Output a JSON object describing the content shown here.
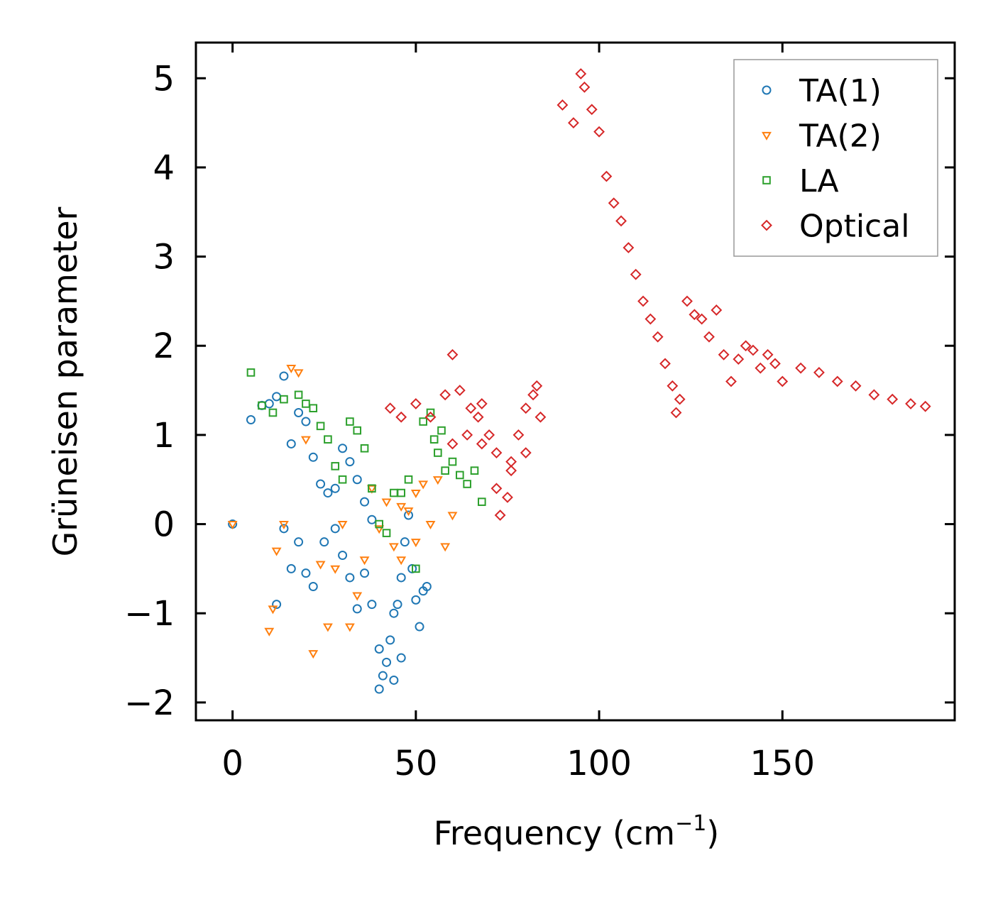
{
  "chart_data": {
    "type": "scatter",
    "title": "",
    "xlabel": "Frequency (cm",
    "xlabel_superscript": "−1",
    "xlabel_suffix": ")",
    "ylabel": "Grüneisen parameter",
    "xlim": [
      -10,
      197
    ],
    "ylim": [
      -2.2,
      5.4
    ],
    "xticks": [
      0,
      50,
      100,
      150
    ],
    "xtick_labels": [
      "0",
      "50",
      "100",
      "150"
    ],
    "yticks": [
      -2,
      -1,
      0,
      1,
      2,
      3,
      4,
      5
    ],
    "ytick_labels": [
      "−2",
      "−1",
      "0",
      "1",
      "2",
      "3",
      "4",
      "5"
    ],
    "grid": false,
    "legend": "top-right",
    "series": [
      {
        "name": "TA(1)",
        "marker": "circle",
        "color": "#1f77b4",
        "anchors": [
          [
            0,
            0
          ],
          [
            5,
            1.17
          ],
          [
            8,
            1.33
          ],
          [
            10,
            1.35
          ],
          [
            12,
            1.43
          ],
          [
            14,
            1.66
          ],
          [
            16,
            0.9
          ],
          [
            18,
            1.25
          ],
          [
            20,
            1.15
          ],
          [
            22,
            0.75
          ],
          [
            24,
            0.45
          ],
          [
            26,
            0.35
          ],
          [
            28,
            0.4
          ],
          [
            30,
            0.85
          ],
          [
            32,
            0.7
          ],
          [
            34,
            0.5
          ],
          [
            36,
            0.25
          ],
          [
            38,
            0.05
          ],
          [
            12,
            -0.9
          ],
          [
            14,
            -0.05
          ],
          [
            16,
            -0.5
          ],
          [
            18,
            -0.2
          ],
          [
            20,
            -0.55
          ],
          [
            22,
            -0.7
          ],
          [
            25,
            -0.2
          ],
          [
            28,
            -0.05
          ],
          [
            30,
            -0.35
          ],
          [
            32,
            -0.6
          ],
          [
            34,
            -0.95
          ],
          [
            36,
            -0.55
          ],
          [
            38,
            -0.9
          ],
          [
            40,
            -1.4
          ],
          [
            41,
            -1.7
          ],
          [
            42,
            -1.55
          ],
          [
            43,
            -1.3
          ],
          [
            44,
            -1.0
          ],
          [
            45,
            -0.9
          ],
          [
            46,
            -0.6
          ],
          [
            47,
            -0.2
          ],
          [
            48,
            0.1
          ],
          [
            49,
            -0.5
          ],
          [
            50,
            -0.85
          ],
          [
            51,
            -1.15
          ],
          [
            52,
            -0.75
          ],
          [
            53,
            -0.7
          ],
          [
            46,
            -1.5
          ],
          [
            44,
            -1.75
          ],
          [
            40,
            -1.85
          ]
        ]
      },
      {
        "name": "TA(2)",
        "marker": "triangle-down",
        "color": "#ff7f0e",
        "anchors": [
          [
            0,
            0
          ],
          [
            10,
            -1.2
          ],
          [
            11,
            -0.95
          ],
          [
            12,
            -0.3
          ],
          [
            14,
            0.0
          ],
          [
            16,
            1.75
          ],
          [
            18,
            1.7
          ],
          [
            20,
            0.95
          ],
          [
            22,
            -1.45
          ],
          [
            24,
            -0.45
          ],
          [
            26,
            -1.15
          ],
          [
            28,
            -0.5
          ],
          [
            30,
            0.0
          ],
          [
            32,
            -1.15
          ],
          [
            34,
            -0.8
          ],
          [
            36,
            -0.4
          ],
          [
            38,
            0.4
          ],
          [
            40,
            -0.05
          ],
          [
            42,
            0.25
          ],
          [
            44,
            -0.25
          ],
          [
            46,
            -0.4
          ],
          [
            48,
            0.15
          ],
          [
            50,
            0.35
          ],
          [
            52,
            0.45
          ],
          [
            54,
            0.0
          ],
          [
            56,
            0.5
          ],
          [
            58,
            -0.25
          ],
          [
            60,
            0.1
          ],
          [
            50,
            -0.2
          ],
          [
            46,
            0.2
          ]
        ]
      },
      {
        "name": "LA",
        "marker": "square",
        "color": "#2ca02c",
        "anchors": [
          [
            5,
            1.7
          ],
          [
            8,
            1.33
          ],
          [
            11,
            1.25
          ],
          [
            14,
            1.4
          ],
          [
            18,
            1.45
          ],
          [
            20,
            1.35
          ],
          [
            22,
            1.3
          ],
          [
            24,
            1.1
          ],
          [
            26,
            0.95
          ],
          [
            28,
            0.65
          ],
          [
            30,
            0.5
          ],
          [
            32,
            1.15
          ],
          [
            34,
            1.05
          ],
          [
            36,
            0.85
          ],
          [
            38,
            0.4
          ],
          [
            40,
            0.0
          ],
          [
            42,
            -0.1
          ],
          [
            44,
            0.35
          ],
          [
            46,
            0.35
          ],
          [
            48,
            0.5
          ],
          [
            50,
            -0.5
          ],
          [
            52,
            1.15
          ],
          [
            54,
            1.25
          ],
          [
            56,
            0.8
          ],
          [
            58,
            0.6
          ],
          [
            60,
            0.7
          ],
          [
            62,
            0.55
          ],
          [
            64,
            0.45
          ],
          [
            66,
            0.6
          ],
          [
            68,
            0.25
          ],
          [
            55,
            0.95
          ],
          [
            57,
            1.05
          ]
        ]
      },
      {
        "name": "Optical",
        "marker": "diamond",
        "color": "#d62728",
        "anchors": [
          [
            43,
            1.3
          ],
          [
            46,
            1.2
          ],
          [
            50,
            1.35
          ],
          [
            54,
            1.2
          ],
          [
            58,
            1.45
          ],
          [
            60,
            1.9
          ],
          [
            62,
            1.5
          ],
          [
            65,
            1.3
          ],
          [
            67,
            1.2
          ],
          [
            68,
            1.35
          ],
          [
            70,
            1.0
          ],
          [
            72,
            0.4
          ],
          [
            73,
            0.1
          ],
          [
            75,
            0.3
          ],
          [
            76,
            0.6
          ],
          [
            78,
            1.0
          ],
          [
            80,
            1.3
          ],
          [
            82,
            1.45
          ],
          [
            84,
            1.2
          ],
          [
            83,
            1.55
          ],
          [
            60,
            0.9
          ],
          [
            64,
            1.0
          ],
          [
            68,
            0.9
          ],
          [
            72,
            0.8
          ],
          [
            76,
            0.7
          ],
          [
            80,
            0.8
          ],
          [
            90,
            4.7
          ],
          [
            93,
            4.5
          ],
          [
            95,
            5.05
          ],
          [
            96,
            4.9
          ],
          [
            98,
            4.65
          ],
          [
            100,
            4.4
          ],
          [
            102,
            3.9
          ],
          [
            104,
            3.6
          ],
          [
            106,
            3.4
          ],
          [
            108,
            3.1
          ],
          [
            110,
            2.8
          ],
          [
            112,
            2.5
          ],
          [
            114,
            2.3
          ],
          [
            116,
            2.1
          ],
          [
            118,
            1.8
          ],
          [
            120,
            1.55
          ],
          [
            121,
            1.25
          ],
          [
            122,
            1.4
          ],
          [
            124,
            2.5
          ],
          [
            126,
            2.35
          ],
          [
            128,
            2.3
          ],
          [
            130,
            2.1
          ],
          [
            132,
            2.4
          ],
          [
            134,
            1.9
          ],
          [
            136,
            1.6
          ],
          [
            138,
            1.85
          ],
          [
            140,
            2.0
          ],
          [
            142,
            1.95
          ],
          [
            144,
            1.75
          ],
          [
            146,
            1.9
          ],
          [
            148,
            1.8
          ],
          [
            150,
            1.6
          ],
          [
            155,
            1.75
          ],
          [
            160,
            1.7
          ],
          [
            165,
            1.6
          ],
          [
            170,
            1.55
          ],
          [
            175,
            1.45
          ],
          [
            180,
            1.4
          ],
          [
            185,
            1.35
          ],
          [
            189,
            1.32
          ]
        ]
      }
    ]
  }
}
